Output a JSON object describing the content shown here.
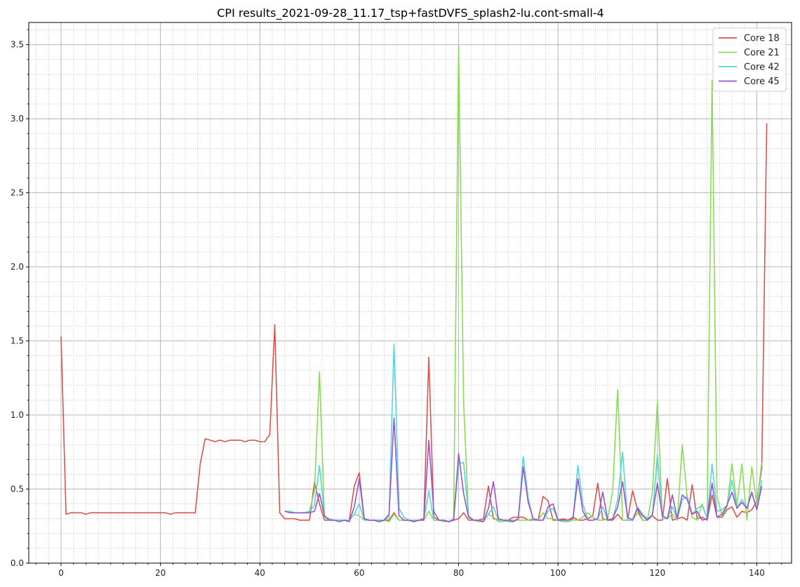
{
  "chart_data": {
    "type": "line",
    "title": "CPI results_2021-09-28_11.17_tsp+fastDVFS_splash2-lu.cont-small-4",
    "xlabel": "",
    "ylabel": "",
    "xlim": [
      -6.5,
      147
    ],
    "ylim": [
      0,
      3.65
    ],
    "x_ticks": [
      0,
      20,
      40,
      60,
      80,
      100,
      120,
      140
    ],
    "y_ticks": [
      0.0,
      0.5,
      1.0,
      1.5,
      2.0,
      2.5,
      3.0,
      3.5
    ],
    "x_tick_labels": [
      "0",
      "20",
      "40",
      "60",
      "80",
      "100",
      "120",
      "140"
    ],
    "y_tick_labels": [
      "0.0",
      "0.5",
      "1.0",
      "1.5",
      "2.0",
      "2.5",
      "3.0",
      "3.5"
    ],
    "x_minor_step": 2.5,
    "y_minor_step": 0.1,
    "grid": true,
    "legend_position": "top-right",
    "series": [
      {
        "name": "Core 18",
        "color": "#d9534f",
        "x_start": 0,
        "values": [
          1.53,
          0.33,
          0.34,
          0.34,
          0.34,
          0.33,
          0.34,
          0.34,
          0.34,
          0.34,
          0.34,
          0.34,
          0.34,
          0.34,
          0.34,
          0.34,
          0.34,
          0.34,
          0.34,
          0.34,
          0.34,
          0.34,
          0.33,
          0.34,
          0.34,
          0.34,
          0.34,
          0.34,
          0.67,
          0.84,
          0.83,
          0.82,
          0.83,
          0.82,
          0.83,
          0.83,
          0.83,
          0.82,
          0.83,
          0.83,
          0.82,
          0.82,
          0.87,
          1.61,
          0.34,
          0.3,
          0.3,
          0.3,
          0.29,
          0.29,
          0.29,
          0.55,
          0.4,
          0.29,
          0.29,
          0.29,
          0.29,
          0.29,
          0.29,
          0.52,
          0.61,
          0.3,
          0.29,
          0.29,
          0.28,
          0.29,
          0.29,
          0.34,
          0.29,
          0.29,
          0.29,
          0.28,
          0.29,
          0.3,
          1.39,
          0.31,
          0.29,
          0.29,
          0.28,
          0.29,
          0.3,
          0.34,
          0.29,
          0.29,
          0.29,
          0.3,
          0.52,
          0.3,
          0.29,
          0.29,
          0.29,
          0.31,
          0.31,
          0.31,
          0.29,
          0.29,
          0.29,
          0.45,
          0.42,
          0.29,
          0.29,
          0.3,
          0.29,
          0.31,
          0.29,
          0.29,
          0.3,
          0.32,
          0.54,
          0.3,
          0.29,
          0.29,
          0.33,
          0.29,
          0.29,
          0.49,
          0.36,
          0.29,
          0.29,
          0.32,
          0.29,
          0.29,
          0.57,
          0.29,
          0.3,
          0.31,
          0.29,
          0.53,
          0.3,
          0.31,
          0.29,
          0.46,
          0.31,
          0.31,
          0.36,
          0.38,
          0.31,
          0.35,
          0.34,
          0.36,
          0.42,
          0.64,
          2.97
        ]
      },
      {
        "name": "Core 21",
        "color": "#88dd55",
        "x_start": 45,
        "values": [
          0.35,
          0.35,
          0.34,
          0.34,
          0.34,
          0.35,
          0.49,
          1.29,
          0.31,
          0.29,
          0.29,
          0.29,
          0.29,
          0.29,
          0.33,
          0.32,
          0.29,
          0.29,
          0.29,
          0.29,
          0.29,
          0.28,
          0.33,
          0.29,
          0.29,
          0.29,
          0.29,
          0.29,
          0.29,
          0.35,
          0.29,
          0.29,
          0.28,
          0.28,
          0.3,
          3.49,
          1.09,
          0.31,
          0.29,
          0.28,
          0.28,
          0.33,
          0.31,
          0.28,
          0.28,
          0.29,
          0.29,
          0.29,
          0.29,
          0.29,
          0.3,
          0.29,
          0.34,
          0.3,
          0.3,
          0.29,
          0.28,
          0.28,
          0.29,
          0.29,
          0.31,
          0.34,
          0.31,
          0.29,
          0.29,
          0.3,
          0.49,
          1.17,
          0.29,
          0.29,
          0.29,
          0.34,
          0.29,
          0.29,
          0.48,
          1.09,
          0.3,
          0.3,
          0.33,
          0.29,
          0.8,
          0.44,
          0.31,
          0.29,
          0.4,
          0.3,
          3.26,
          0.45,
          0.32,
          0.38,
          0.67,
          0.39,
          0.67,
          0.29,
          0.65,
          0.4,
          0.68
        ]
      },
      {
        "name": "Core 42",
        "color": "#55d5dd",
        "x_start": 45,
        "values": [
          0.35,
          0.35,
          0.34,
          0.34,
          0.34,
          0.35,
          0.39,
          0.66,
          0.31,
          0.3,
          0.29,
          0.29,
          0.29,
          0.29,
          0.33,
          0.4,
          0.29,
          0.29,
          0.29,
          0.29,
          0.29,
          0.31,
          1.48,
          0.37,
          0.31,
          0.29,
          0.29,
          0.29,
          0.29,
          0.49,
          0.29,
          0.29,
          0.29,
          0.28,
          0.3,
          0.67,
          0.68,
          0.32,
          0.29,
          0.29,
          0.28,
          0.33,
          0.38,
          0.29,
          0.29,
          0.28,
          0.28,
          0.3,
          0.72,
          0.44,
          0.29,
          0.29,
          0.29,
          0.35,
          0.37,
          0.29,
          0.29,
          0.29,
          0.3,
          0.66,
          0.4,
          0.29,
          0.29,
          0.3,
          0.38,
          0.29,
          0.3,
          0.43,
          0.75,
          0.29,
          0.29,
          0.38,
          0.33,
          0.3,
          0.32,
          0.73,
          0.3,
          0.3,
          0.38,
          0.3,
          0.43,
          0.45,
          0.33,
          0.37,
          0.39,
          0.3,
          0.67,
          0.35,
          0.36,
          0.39,
          0.56,
          0.37,
          0.43,
          0.37,
          0.47,
          0.37,
          0.56
        ]
      },
      {
        "name": "Core 45",
        "color": "#9955cc",
        "x_start": 45,
        "values": [
          0.35,
          0.34,
          0.34,
          0.34,
          0.34,
          0.34,
          0.35,
          0.47,
          0.32,
          0.29,
          0.29,
          0.28,
          0.29,
          0.28,
          0.38,
          0.57,
          0.3,
          0.29,
          0.29,
          0.28,
          0.29,
          0.33,
          0.98,
          0.32,
          0.29,
          0.29,
          0.28,
          0.29,
          0.29,
          0.83,
          0.35,
          0.29,
          0.29,
          0.28,
          0.29,
          0.74,
          0.47,
          0.31,
          0.29,
          0.29,
          0.28,
          0.37,
          0.55,
          0.3,
          0.29,
          0.29,
          0.28,
          0.3,
          0.65,
          0.41,
          0.3,
          0.29,
          0.29,
          0.38,
          0.4,
          0.29,
          0.29,
          0.29,
          0.3,
          0.57,
          0.35,
          0.29,
          0.29,
          0.3,
          0.48,
          0.29,
          0.3,
          0.38,
          0.55,
          0.31,
          0.29,
          0.37,
          0.32,
          0.29,
          0.33,
          0.54,
          0.32,
          0.3,
          0.46,
          0.3,
          0.46,
          0.43,
          0.33,
          0.35,
          0.29,
          0.3,
          0.54,
          0.31,
          0.33,
          0.39,
          0.48,
          0.37,
          0.41,
          0.37,
          0.48,
          0.36,
          0.52
        ]
      }
    ]
  }
}
